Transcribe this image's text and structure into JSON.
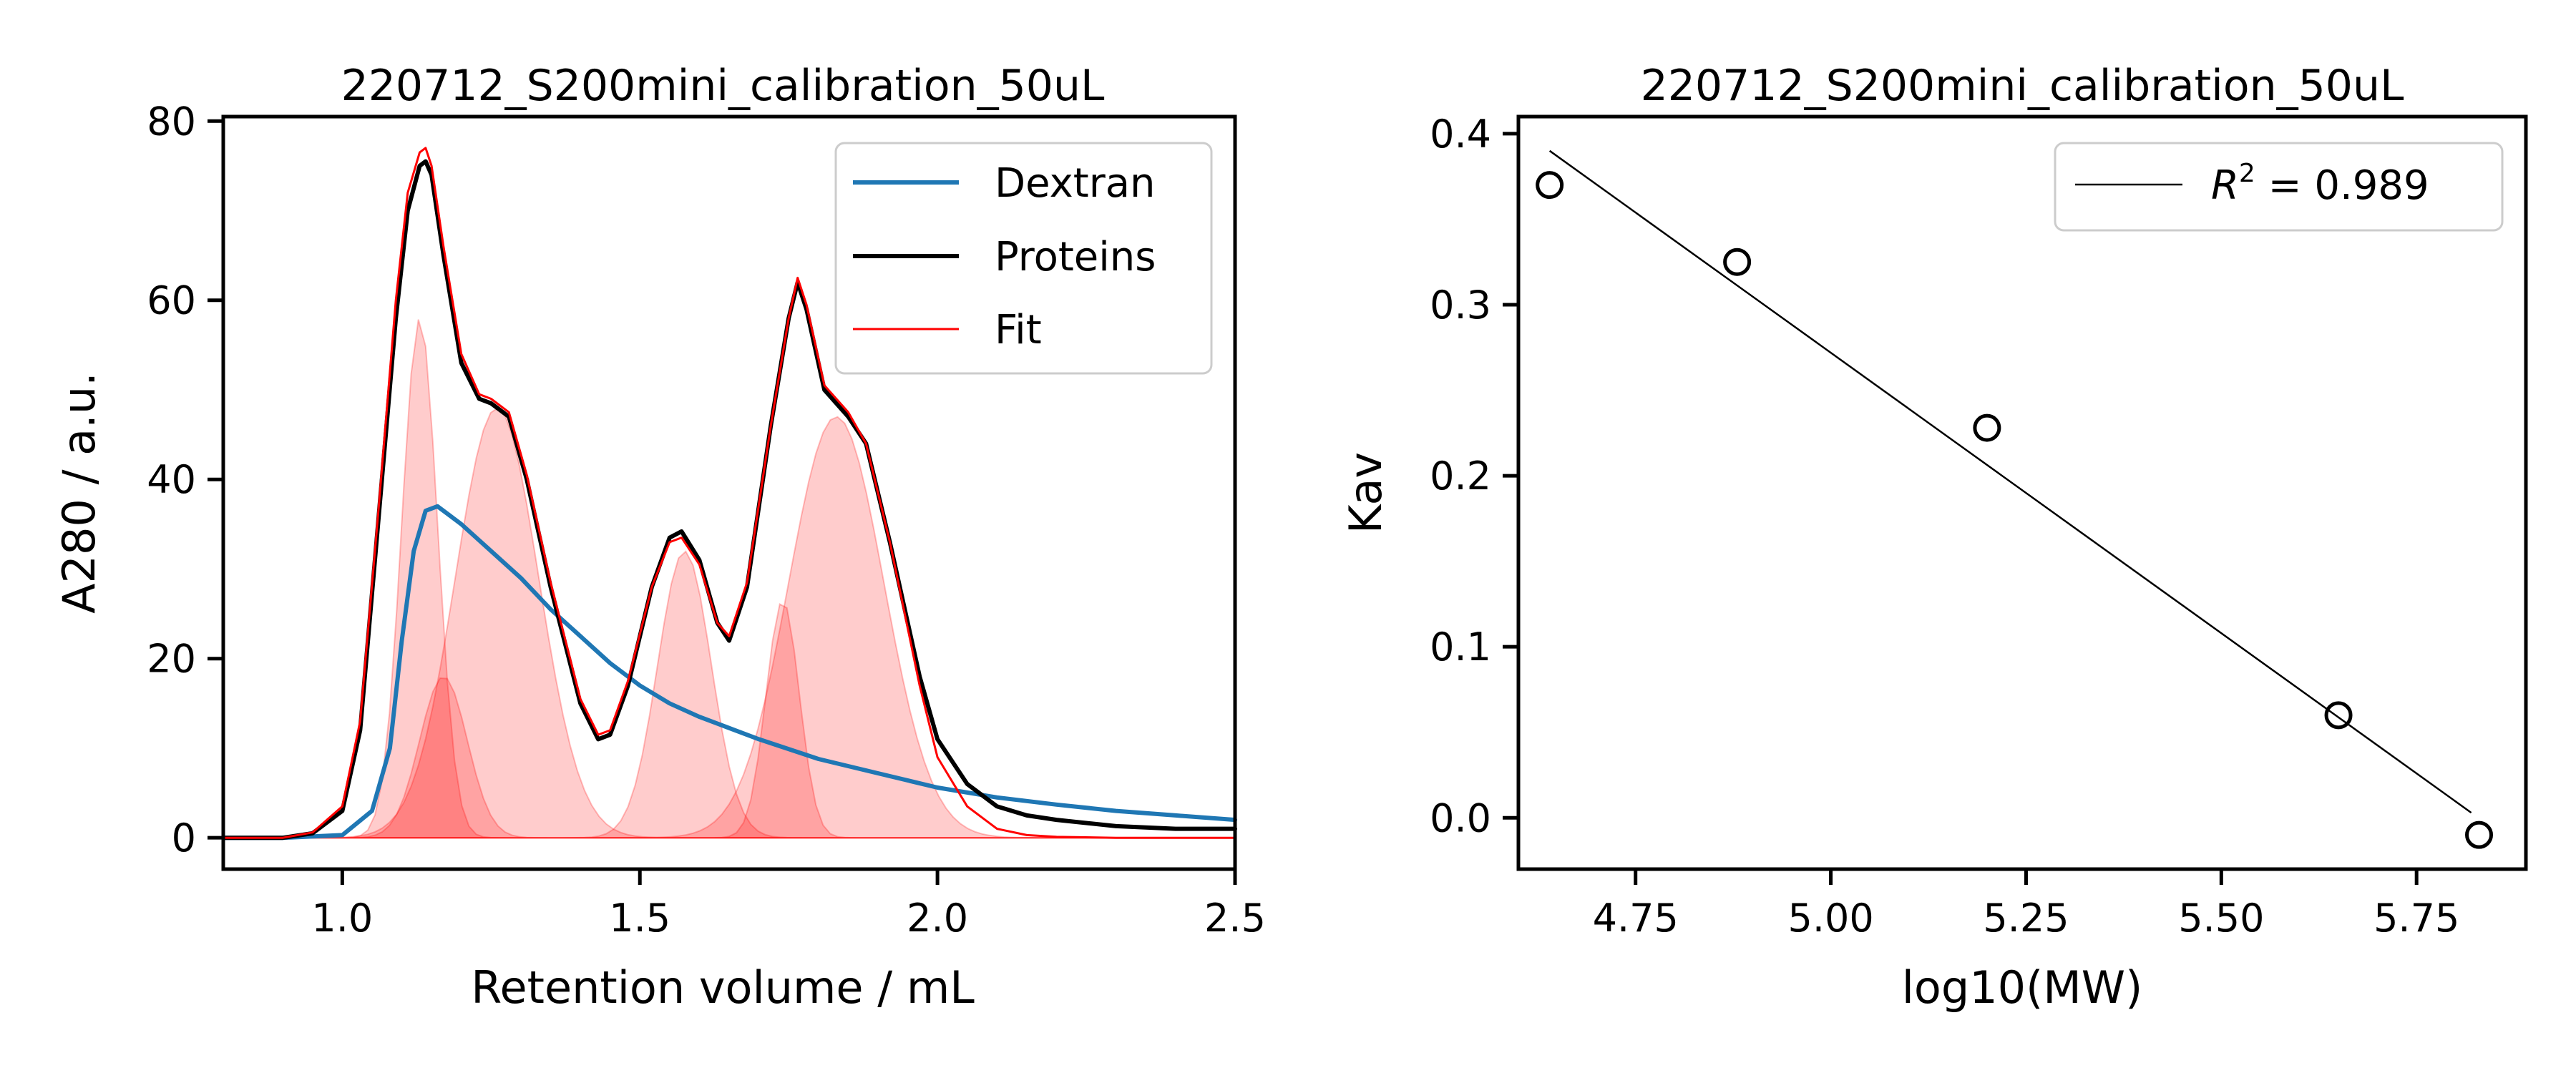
{
  "chart_data": [
    {
      "type": "line",
      "title": "220712_S200mini_calibration_50uL",
      "xlabel": "Retention volume / mL",
      "ylabel": "A280 / a.u.",
      "xlim": [
        0.8,
        2.5
      ],
      "ylim": [
        -3.5,
        80.5
      ],
      "xticks": [
        1.0,
        1.5,
        2.0,
        2.5
      ],
      "xtick_labels": [
        "1.0",
        "1.5",
        "2.0",
        "2.5"
      ],
      "yticks": [
        0,
        20,
        40,
        60,
        80
      ],
      "ytick_labels": [
        "0",
        "20",
        "40",
        "60",
        "80"
      ],
      "grid": false,
      "legend_position": "top-right",
      "series": [
        {
          "name": "Dextran",
          "color": "#1f77b4",
          "x": [
            0.8,
            0.9,
            1.0,
            1.05,
            1.08,
            1.1,
            1.12,
            1.14,
            1.16,
            1.18,
            1.2,
            1.25,
            1.3,
            1.35,
            1.4,
            1.45,
            1.5,
            1.55,
            1.6,
            1.7,
            1.8,
            1.9,
            2.0,
            2.1,
            2.2,
            2.3,
            2.4,
            2.5
          ],
          "y": [
            0,
            0,
            0.3,
            3,
            10,
            22,
            32,
            36.5,
            37,
            36,
            35,
            32,
            29,
            25.5,
            22.5,
            19.5,
            17,
            15,
            13.5,
            11,
            8.8,
            7.2,
            5.6,
            4.5,
            3.7,
            3.0,
            2.5,
            2.0
          ]
        },
        {
          "name": "Proteins",
          "color": "#000000",
          "x": [
            0.8,
            0.9,
            0.95,
            1.0,
            1.03,
            1.06,
            1.09,
            1.11,
            1.13,
            1.14,
            1.15,
            1.17,
            1.2,
            1.23,
            1.25,
            1.28,
            1.31,
            1.35,
            1.4,
            1.43,
            1.45,
            1.48,
            1.52,
            1.55,
            1.57,
            1.6,
            1.63,
            1.65,
            1.68,
            1.72,
            1.75,
            1.765,
            1.78,
            1.81,
            1.85,
            1.88,
            1.92,
            1.97,
            2.0,
            2.05,
            2.1,
            2.15,
            2.2,
            2.3,
            2.4,
            2.5
          ],
          "y": [
            0,
            0,
            0.5,
            3,
            12,
            35,
            58,
            70,
            75,
            75.5,
            74,
            65,
            53,
            49,
            48.5,
            47,
            40,
            28,
            15,
            11,
            11.5,
            17,
            28,
            33.5,
            34.2,
            31,
            24,
            22,
            28,
            46,
            58,
            62,
            59,
            50,
            47,
            44,
            33,
            18,
            11,
            6,
            3.5,
            2.5,
            2.0,
            1.3,
            1.0,
            1.0
          ]
        },
        {
          "name": "Fit",
          "color": "#ff0000",
          "x": [
            0.8,
            0.9,
            0.95,
            1.0,
            1.03,
            1.06,
            1.09,
            1.11,
            1.13,
            1.14,
            1.15,
            1.17,
            1.2,
            1.23,
            1.25,
            1.28,
            1.31,
            1.35,
            1.4,
            1.43,
            1.45,
            1.48,
            1.52,
            1.55,
            1.57,
            1.6,
            1.63,
            1.65,
            1.68,
            1.72,
            1.75,
            1.765,
            1.78,
            1.81,
            1.85,
            1.88,
            1.92,
            1.97,
            2.0,
            2.05,
            2.1,
            2.15,
            2.2,
            2.3,
            2.4,
            2.5
          ],
          "y": [
            0,
            0,
            0.6,
            3.5,
            13,
            36,
            60,
            72,
            76.5,
            77,
            75,
            66,
            54,
            49.5,
            49,
            47.5,
            40.5,
            28.5,
            15.5,
            11.5,
            12,
            17.5,
            28,
            33,
            33.5,
            30.5,
            24,
            22.5,
            28.5,
            46,
            58,
            62.5,
            59.5,
            50.5,
            47.5,
            44,
            33,
            17,
            9,
            3.5,
            1,
            0.3,
            0.1,
            0,
            0,
            0
          ]
        }
      ],
      "fit_components": {
        "color": "#ff0000",
        "fill_alpha": 0.2,
        "peaks": [
          {
            "center": 1.13,
            "height": 58,
            "width": 0.03
          },
          {
            "center": 1.17,
            "height": 18,
            "width": 0.04
          },
          {
            "center": 1.26,
            "height": 48,
            "width": 0.07
          },
          {
            "center": 1.575,
            "height": 32,
            "width": 0.045
          },
          {
            "center": 1.74,
            "height": 26.5,
            "width": 0.028
          },
          {
            "center": 1.83,
            "height": 47,
            "width": 0.08
          }
        ]
      }
    },
    {
      "type": "scatter",
      "title": "220712_S200mini_calibration_50uL",
      "xlabel": "log10(MW)",
      "ylabel": "Kav",
      "xlim": [
        4.6,
        5.89
      ],
      "ylim": [
        -0.03,
        0.41
      ],
      "xticks": [
        4.75,
        5.0,
        5.25,
        5.5,
        5.75
      ],
      "xtick_labels": [
        "4.75",
        "5.00",
        "5.25",
        "5.50",
        "5.75"
      ],
      "yticks": [
        0.0,
        0.1,
        0.2,
        0.3,
        0.4
      ],
      "ytick_labels": [
        "0.0",
        "0.1",
        "0.2",
        "0.3",
        "0.4"
      ],
      "grid": false,
      "legend_position": "top-right",
      "points": {
        "marker": "open-circle",
        "color": "#000000",
        "x": [
          4.64,
          4.88,
          5.2,
          5.65,
          5.83
        ],
        "y": [
          0.37,
          0.325,
          0.228,
          0.06,
          -0.01
        ]
      },
      "fit_line": {
        "color": "#000000",
        "x": [
          4.64,
          5.82
        ],
        "y": [
          0.39,
          0.003
        ],
        "legend_label": "$R^2$ = 0.989"
      }
    }
  ]
}
